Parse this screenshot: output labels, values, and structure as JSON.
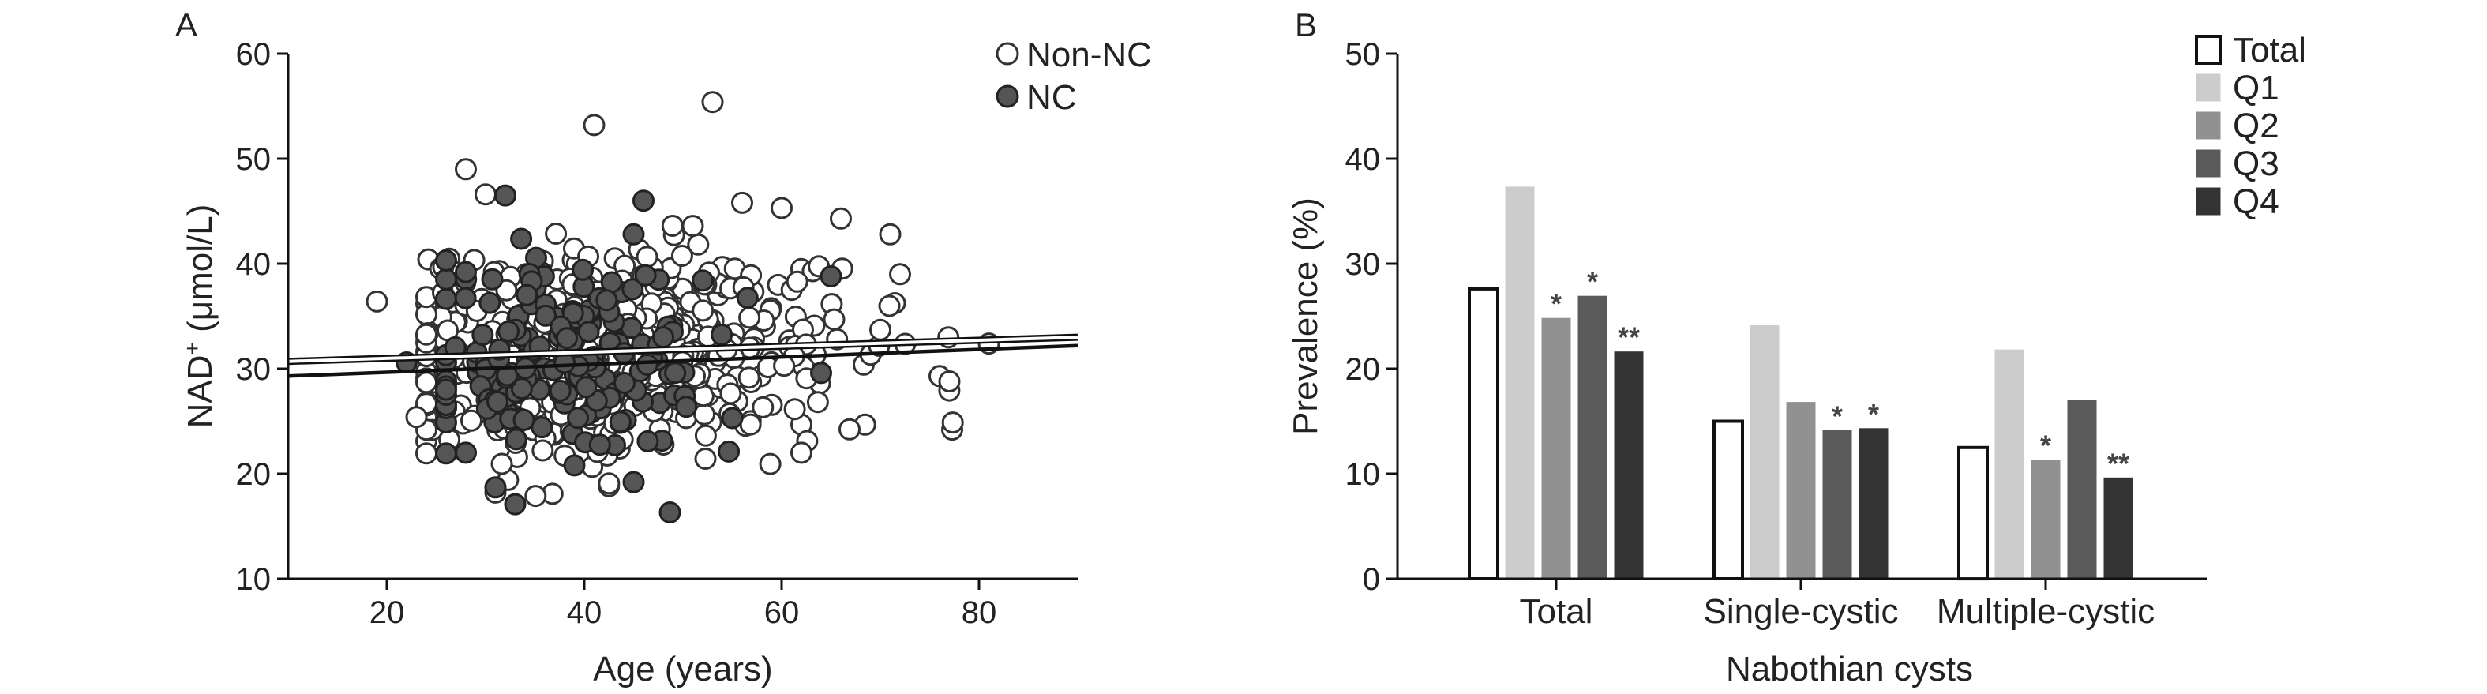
{
  "panels": {
    "a": {
      "letter": "A"
    },
    "b": {
      "letter": "B"
    }
  },
  "chart_data": [
    {
      "type": "scatter",
      "panel": "A",
      "xlabel": "Age (years)",
      "ylabel_main": "NAD",
      "ylabel_sup": "+",
      "ylabel_rest": " (μmol/L)",
      "xlim": [
        10,
        90
      ],
      "ylim": [
        10,
        60
      ],
      "xticks": [
        20,
        40,
        60,
        80
      ],
      "yticks": [
        10,
        20,
        30,
        40,
        50,
        60
      ],
      "grid": false,
      "legend_position": "top-right",
      "series": [
        {
          "name": "Non-NC",
          "marker": "open-circle",
          "color": "#ffffff",
          "edge_color": "#333333",
          "fit_line": [
            [
              10,
              30.7
            ],
            [
              90,
              33.0
            ]
          ],
          "highlight_points": [
            [
              19,
              36.4
            ],
            [
              28,
              49.0
            ],
            [
              41,
              53.2
            ],
            [
              53,
              55.4
            ],
            [
              81,
              32.4
            ],
            [
              71,
              42.8
            ],
            [
              72,
              39.0
            ],
            [
              76,
              29.3
            ],
            [
              77,
              28.8
            ],
            [
              66,
              44.3
            ],
            [
              60,
              45.3
            ],
            [
              56,
              45.8
            ],
            [
              51,
              43.6
            ],
            [
              30,
              46.6
            ],
            [
              31,
              18.2
            ],
            [
              23,
              25.4
            ],
            [
              62,
              22.0
            ],
            [
              70,
              33.7
            ]
          ],
          "cloud": {
            "count": 520,
            "x_range": [
              24,
              78
            ],
            "x_center": 43,
            "x_spread": 11,
            "y_center": 31.5,
            "y_spread": 4.8,
            "seed": 7
          }
        },
        {
          "name": "NC",
          "marker": "filled-circle",
          "color": "#555555",
          "edge_color": "#222222",
          "fit_line": [
            [
              10,
              29.3
            ],
            [
              90,
              32.2
            ]
          ],
          "highlight_points": [
            [
              22,
              30.6
            ],
            [
              28,
              22.0
            ],
            [
              32,
              46.5
            ],
            [
              33,
              17.1
            ],
            [
              31,
              18.7
            ],
            [
              39,
              20.8
            ],
            [
              45,
              19.2
            ],
            [
              46,
              46.0
            ],
            [
              45,
              42.8
            ],
            [
              64,
              29.6
            ],
            [
              65,
              38.8
            ],
            [
              28,
              39.2
            ],
            [
              48,
              33.0
            ],
            [
              52,
              38.4
            ],
            [
              55,
              25.3
            ]
          ],
          "cloud": {
            "count": 170,
            "x_range": [
              26,
              58
            ],
            "x_center": 38,
            "x_spread": 7.5,
            "y_center": 30.5,
            "y_spread": 4.6,
            "seed": 21
          }
        }
      ]
    },
    {
      "type": "bar",
      "panel": "B",
      "xlabel_line1": "",
      "xlabel": "Nabothian cysts",
      "ylabel": "Prevalence (%)",
      "ylim": [
        0,
        50
      ],
      "yticks": [
        0,
        10,
        20,
        30,
        40,
        50
      ],
      "grid": false,
      "legend_position": "top-right",
      "categories": [
        "Total",
        "Single-cystic",
        "Multiple-cystic"
      ],
      "series": [
        {
          "name": "Total",
          "color": "#ffffff",
          "edge_color": "#111111",
          "values": [
            27.6,
            15.0,
            12.5
          ],
          "marks": [
            "",
            "",
            ""
          ]
        },
        {
          "name": "Q1",
          "color": "#cccccc",
          "edge_color": "#cccccc",
          "values": [
            37.3,
            24.1,
            21.8
          ],
          "marks": [
            "",
            "",
            ""
          ]
        },
        {
          "name": "Q2",
          "color": "#919191",
          "edge_color": "#919191",
          "values": [
            24.8,
            16.8,
            11.3
          ],
          "marks": [
            "*",
            "",
            "*"
          ]
        },
        {
          "name": "Q3",
          "color": "#5a5a5a",
          "edge_color": "#5a5a5a",
          "values": [
            26.9,
            14.1,
            17.0
          ],
          "marks": [
            "*",
            "*",
            ""
          ]
        },
        {
          "name": "Q4",
          "color": "#333333",
          "edge_color": "#333333",
          "values": [
            21.6,
            14.3,
            9.6
          ],
          "marks": [
            "**",
            "*",
            "**"
          ]
        }
      ]
    }
  ]
}
